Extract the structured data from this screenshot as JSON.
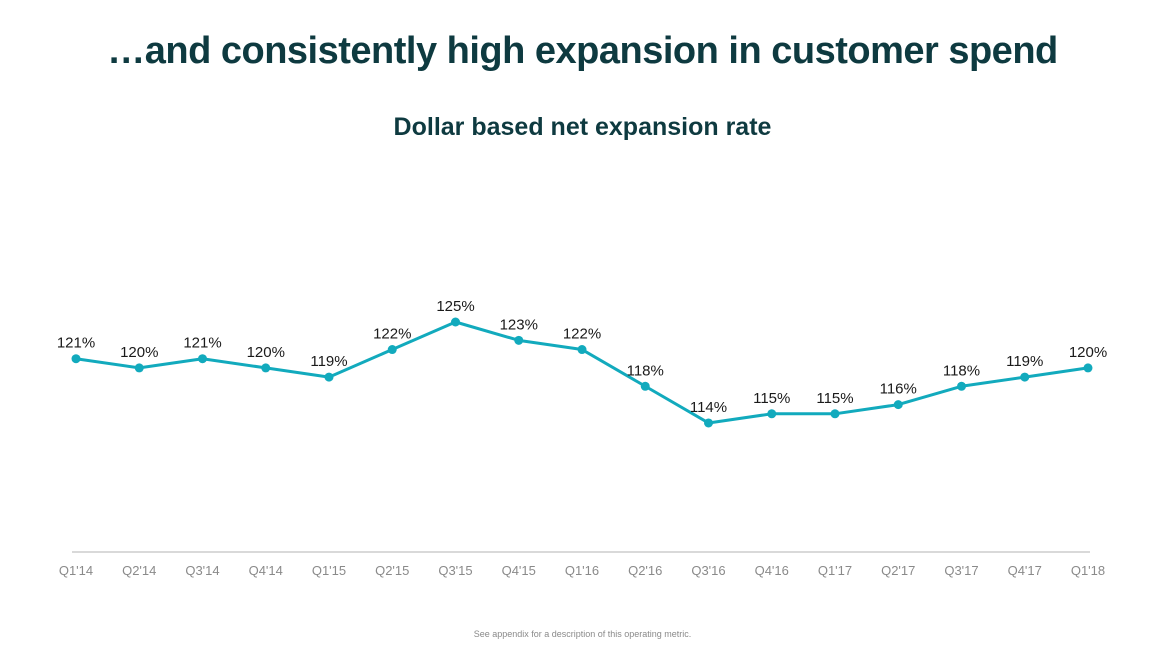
{
  "page": {
    "title": "…and consistently high expansion in customer spend",
    "footnote": "See appendix for a description of this operating metric."
  },
  "chart_data": {
    "type": "line",
    "title": "Dollar based net expansion rate",
    "xlabel": "",
    "ylabel": "",
    "categories": [
      "Q1'14",
      "Q2'14",
      "Q3'14",
      "Q4'14",
      "Q1'15",
      "Q2'15",
      "Q3'15",
      "Q4'15",
      "Q1'16",
      "Q2'16",
      "Q3'16",
      "Q4'16",
      "Q1'17",
      "Q2'17",
      "Q3'17",
      "Q4'17",
      "Q1'18"
    ],
    "series": [
      {
        "name": "Dollar based net expansion rate",
        "values": [
          121,
          120,
          121,
          120,
          119,
          122,
          125,
          123,
          122,
          118,
          114,
          115,
          115,
          116,
          118,
          119,
          120
        ],
        "labels": [
          "121%",
          "120%",
          "121%",
          "120%",
          "119%",
          "122%",
          "125%",
          "123%",
          "122%",
          "118%",
          "114%",
          "115%",
          "115%",
          "116%",
          "118%",
          "119%",
          "120%"
        ],
        "color": "#12aabd"
      }
    ],
    "ylim": [
      100,
      125
    ],
    "grid": false,
    "legend": "none",
    "axis_color": "#b3b3b3",
    "tick_label_color": "#8a8a8a",
    "data_label_color": "#1a1a1a"
  }
}
